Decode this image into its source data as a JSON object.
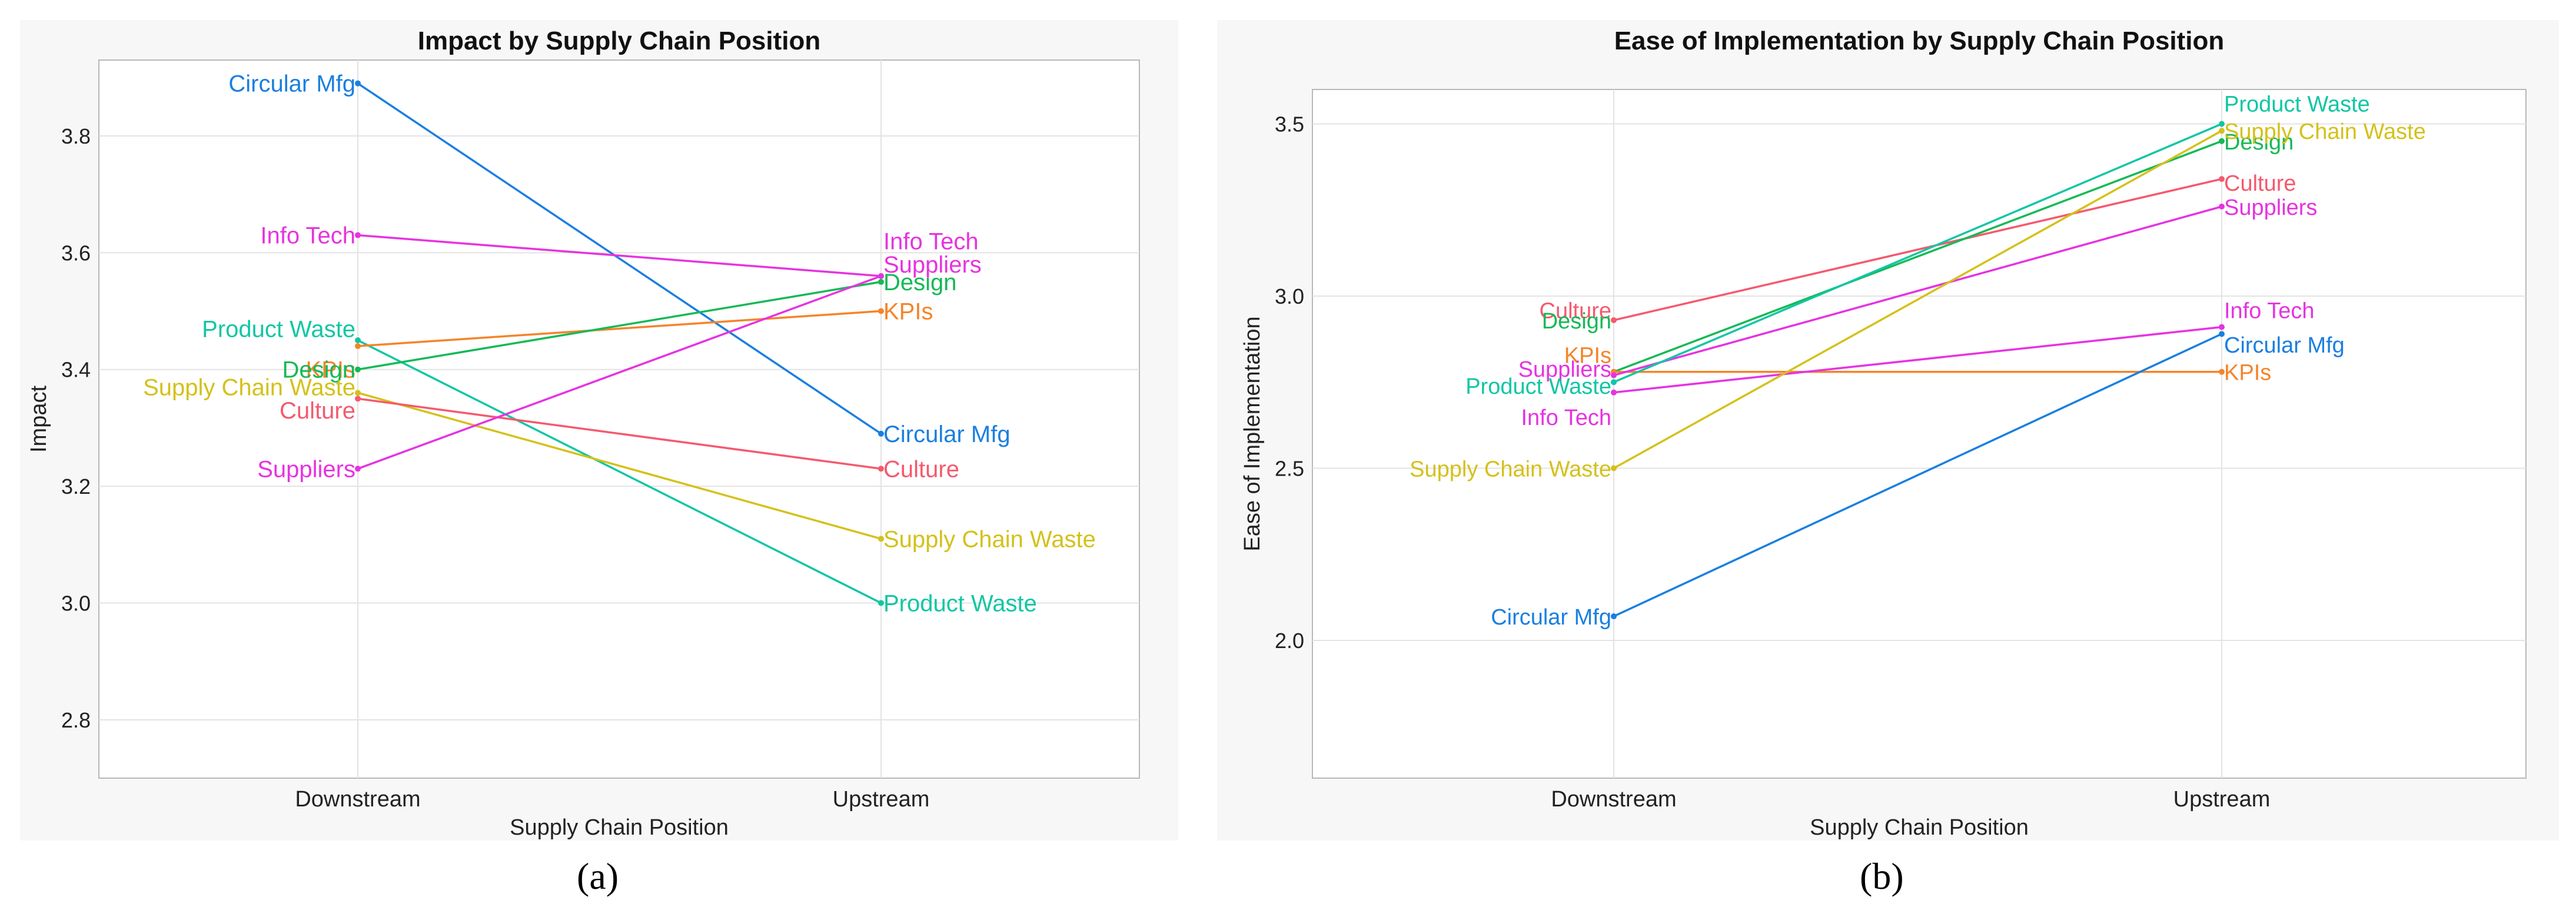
{
  "chart_data": [
    {
      "id": "a",
      "type": "line",
      "title": "Impact by Supply Chain Position",
      "xlabel": "Supply Chain Position",
      "ylabel": "Impact",
      "categories": [
        "Downstream",
        "Upstream"
      ],
      "ylim": [
        2.7,
        3.93
      ],
      "yticks": [
        "2.8",
        "3.0",
        "3.2",
        "3.4",
        "3.6",
        "3.8"
      ],
      "grid": true,
      "series": [
        {
          "name": "Circular Mfg",
          "color": "#1a7fe0",
          "values": [
            3.89,
            3.29
          ],
          "label_offsets": [
            0,
            0
          ]
        },
        {
          "name": "Info Tech",
          "color": "#e633e0",
          "values": [
            3.63,
            3.56
          ],
          "label_offsets": [
            0,
            0.06
          ]
        },
        {
          "name": "Product Waste",
          "color": "#11c6a4",
          "values": [
            3.45,
            3.0
          ],
          "label_offsets": [
            0.02,
            0
          ]
        },
        {
          "name": "KPIs",
          "color": "#f5842a",
          "values": [
            3.44,
            3.5
          ],
          "label_offsets": [
            -0.04,
            0
          ]
        },
        {
          "name": "Design",
          "color": "#14b956",
          "values": [
            3.4,
            3.55
          ],
          "label_offsets": [
            0,
            0
          ]
        },
        {
          "name": "Supply Chain Waste",
          "color": "#d4c11a",
          "values": [
            3.36,
            3.11
          ],
          "label_offsets": [
            0.01,
            0
          ]
        },
        {
          "name": "Culture",
          "color": "#f5596e",
          "values": [
            3.35,
            3.23
          ],
          "label_offsets": [
            -0.02,
            0
          ]
        },
        {
          "name": "Suppliers",
          "color": "#e633e0",
          "values": [
            3.23,
            3.56
          ],
          "label_offsets": [
            0,
            0.02
          ]
        }
      ]
    },
    {
      "id": "b",
      "type": "line",
      "title": "Ease of Implementation by Supply Chain Position",
      "xlabel": "Supply Chain Position",
      "ylabel": "Ease of Implementation",
      "categories": [
        "Downstream",
        "Upstream"
      ],
      "ylim": [
        1.6,
        3.6
      ],
      "yticks": [
        "2.0",
        "2.5",
        "3.0",
        "3.5"
      ],
      "grid": true,
      "series": [
        {
          "name": "Culture",
          "color": "#f5596e",
          "values": [
            2.93,
            3.34
          ],
          "label_offsets": [
            0.03,
            -0.01
          ]
        },
        {
          "name": "Design",
          "color": "#14b956",
          "values": [
            2.78,
            3.45
          ],
          "label_offsets": [
            0.15,
            0
          ]
        },
        {
          "name": "KPIs",
          "color": "#f5842a",
          "values": [
            2.78,
            2.78
          ],
          "label_offsets": [
            0.05,
            0
          ]
        },
        {
          "name": "Suppliers",
          "color": "#e633e0",
          "values": [
            2.77,
            3.26
          ],
          "label_offsets": [
            0.02,
            0
          ]
        },
        {
          "name": "Product Waste",
          "color": "#11c6a4",
          "values": [
            2.75,
            3.5
          ],
          "label_offsets": [
            -0.01,
            0.06
          ]
        },
        {
          "name": "Info Tech",
          "color": "#e633e0",
          "values": [
            2.72,
            2.91
          ],
          "label_offsets": [
            -0.07,
            0.05
          ]
        },
        {
          "name": "Supply Chain Waste",
          "color": "#d4c11a",
          "values": [
            2.5,
            3.48
          ],
          "label_offsets": [
            0,
            0
          ]
        },
        {
          "name": "Circular Mfg",
          "color": "#1a7fe0",
          "values": [
            2.07,
            2.89
          ],
          "label_offsets": [
            0,
            -0.03
          ]
        }
      ]
    }
  ],
  "captions": {
    "a": "(a)",
    "b": "(b)"
  }
}
